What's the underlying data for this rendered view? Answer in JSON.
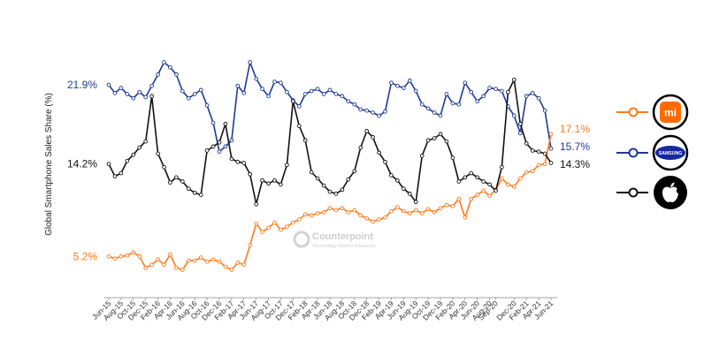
{
  "watermark": {
    "name": "Counterpoint",
    "tagline": "Technology Market Research"
  },
  "chart_data": {
    "type": "line",
    "ylabel": "Global Smartphone Sales Share (%)",
    "ylim": [
      3,
      25
    ],
    "grid": false,
    "legend": "right (brand logos)",
    "x": [
      "Jun-15",
      "Jul-15",
      "Aug-15",
      "Sep-15",
      "Oct-15",
      "Nov-15",
      "Dec-15",
      "Jan-16",
      "Feb-16",
      "Mar-16",
      "Apr-16",
      "May-16",
      "Jun-16",
      "Jul-16",
      "Aug-16",
      "Sep-16",
      "Oct-16",
      "Nov-16",
      "Dec-16",
      "Jan-17",
      "Feb-17",
      "Mar-17",
      "Apr-17",
      "May-17",
      "Jun-17",
      "Jul-17",
      "Aug-17",
      "Sep-17",
      "Oct-17",
      "Nov-17",
      "Dec-17",
      "Jan-18",
      "Feb-18",
      "Mar-18",
      "Apr-18",
      "May-18",
      "Jun-18",
      "Jul-18",
      "Aug-18",
      "Sep-18",
      "Oct-18",
      "Nov-18",
      "Dec-18",
      "Jan-19",
      "Feb-19",
      "Mar-19",
      "Apr-19",
      "May-19",
      "Jun-19",
      "Jul-19",
      "Aug-19",
      "Sep-19",
      "Oct-19",
      "Nov-19",
      "Dec-19",
      "Jan-20",
      "Feb-20",
      "Mar-20",
      "Apr-20",
      "May-20",
      "Jun-20",
      "Jul-20",
      "Aug-20",
      "Sep-20",
      "Oct-20",
      "Nov-20",
      "Dec-20",
      "Jan-21",
      "Feb-21",
      "Mar-21",
      "Apr-21",
      "May-21",
      "Jun-21"
    ],
    "tick_labels": [
      "Jun-15",
      "Aug-15",
      "Oct-15",
      "Dec-15",
      "Feb-16",
      "Apr-16",
      "Jun-16",
      "Aug-16",
      "Oct-16",
      "Dec-16",
      "Feb-17",
      "Apr-17",
      "Jun-17",
      "Aug-17",
      "Oct-17",
      "Dec-17",
      "Feb-18",
      "Apr-18",
      "Jun-18",
      "Aug-18",
      "Oct-18",
      "Dec-18",
      "Feb-19",
      "Apr-19",
      "Jun-19",
      "Aug-19",
      "Oct-19",
      "Dec-19",
      "Feb-20",
      "Apr-20",
      "Jun-20",
      "Aug-20",
      "Sep-20",
      "Dec-20",
      "Feb-21",
      "Apr-21",
      "Jun-21"
    ],
    "series": [
      {
        "brand": "Samsung",
        "color": "#1f3a93",
        "start_label": "21.9%",
        "end_label": "15.7%",
        "values": [
          21.9,
          21.1,
          21.6,
          21.0,
          20.6,
          21.2,
          20.7,
          21.8,
          22.9,
          24.1,
          23.6,
          22.9,
          21.3,
          20.6,
          21.0,
          21.4,
          19.9,
          18.2,
          15.4,
          15.9,
          16.5,
          21.8,
          21.1,
          24.1,
          22.5,
          21.5,
          20.8,
          22.2,
          22.1,
          21.2,
          20.4,
          19.8,
          21.0,
          21.3,
          21.5,
          21.0,
          21.4,
          21.0,
          20.8,
          20.3,
          20.0,
          19.5,
          19.4,
          19.2,
          18.9,
          19.3,
          22.1,
          21.8,
          21.6,
          22.3,
          21.3,
          20.0,
          19.6,
          19.2,
          18.9,
          21.0,
          20.1,
          20.0,
          22.1,
          21.2,
          20.3,
          20.8,
          21.6,
          21.5,
          21.3,
          19.8,
          18.9,
          17.2,
          20.8,
          21.1,
          20.6,
          19.4,
          15.7
        ]
      },
      {
        "brand": "Xiaomi",
        "color": "#ff7a1a",
        "start_label": "5.2%",
        "end_label": "17.1%",
        "values": [
          5.2,
          5.0,
          5.2,
          5.3,
          5.6,
          5.2,
          4.1,
          4.4,
          4.9,
          4.4,
          5.4,
          4.1,
          3.9,
          4.8,
          4.8,
          5.1,
          4.7,
          4.9,
          4.7,
          4.2,
          3.9,
          4.6,
          4.4,
          6.3,
          8.4,
          7.6,
          8.0,
          8.5,
          7.8,
          8.1,
          8.5,
          8.8,
          9.3,
          9.2,
          9.4,
          9.5,
          9.9,
          9.7,
          9.9,
          9.5,
          9.7,
          9.2,
          8.9,
          8.6,
          8.8,
          9.0,
          9.6,
          10.0,
          9.6,
          9.4,
          9.7,
          9.4,
          9.8,
          9.5,
          9.9,
          10.2,
          10.1,
          10.8,
          9.0,
          10.8,
          11.2,
          11.6,
          11.1,
          11.7,
          12.8,
          12.2,
          12.0,
          12.8,
          13.4,
          13.5,
          14.1,
          14.2,
          17.1
        ]
      },
      {
        "brand": "Apple",
        "color": "#111111",
        "start_label": "14.2%",
        "end_label": "14.3%",
        "values": [
          14.2,
          13.0,
          13.3,
          14.5,
          15.1,
          15.8,
          16.4,
          20.8,
          15.2,
          13.9,
          12.4,
          12.9,
          12.5,
          11.8,
          11.4,
          11.2,
          15.5,
          15.9,
          16.3,
          18.1,
          14.7,
          14.4,
          14.3,
          13.2,
          10.3,
          12.6,
          12.3,
          12.6,
          12.2,
          14.1,
          20.3,
          17.9,
          16.5,
          13.4,
          12.8,
          12.1,
          11.5,
          11.3,
          11.7,
          12.7,
          13.5,
          15.8,
          17.4,
          16.8,
          15.3,
          14.4,
          13.1,
          12.6,
          11.8,
          11.3,
          10.5,
          15.0,
          16.5,
          16.7,
          17.1,
          16.4,
          14.8,
          12.5,
          12.9,
          13.3,
          12.9,
          12.5,
          12.2,
          11.6,
          13.9,
          21.2,
          22.4,
          18.1,
          16.2,
          15.5,
          15.4,
          15.2,
          14.3
        ]
      }
    ]
  },
  "legend": {
    "items": [
      {
        "brand": "Xiaomi",
        "icon": "xiaomi-logo-icon",
        "logo_text": "mi"
      },
      {
        "brand": "Samsung",
        "icon": "samsung-logo-icon",
        "logo_text": "SAMSUNG"
      },
      {
        "brand": "Apple",
        "icon": "apple-logo-icon",
        "logo_text": ""
      }
    ]
  }
}
